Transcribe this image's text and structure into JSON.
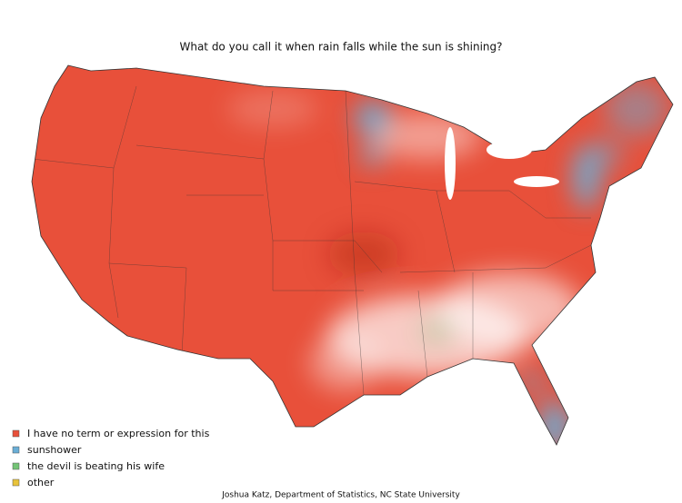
{
  "title": "What do you call it when rain falls while the sun is shining?",
  "legend": [
    {
      "label": "I have no term or expression for this",
      "color": "#e8503a"
    },
    {
      "label": "sunshower",
      "color": "#6aaed6"
    },
    {
      "label": "the devil is beating his wife",
      "color": "#74c476"
    },
    {
      "label": "other",
      "color": "#e8c33a"
    }
  ],
  "credit": "Joshua Katz, Department of Statistics, NC State University"
}
